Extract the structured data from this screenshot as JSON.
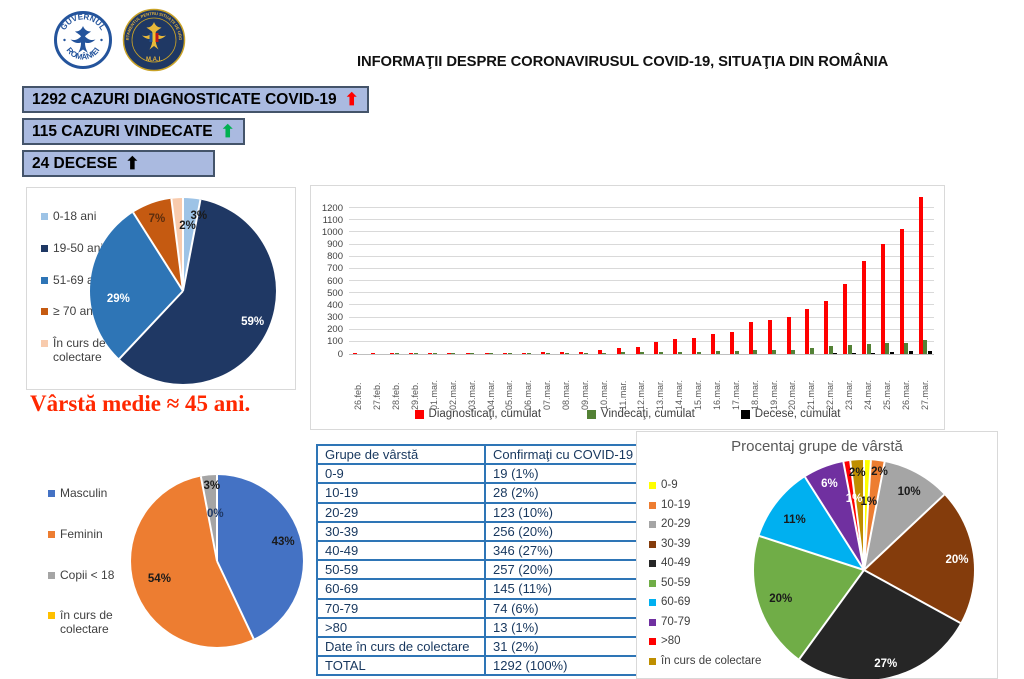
{
  "title": "INFORMAŢII DESPRE CORONAVIRUSUL COVID-19, SITUAŢIA DIN ROMÂNIA",
  "logos": {
    "gov": {
      "top": "GUVERNUL",
      "bottom": "ROMÂNIEI"
    },
    "dsu": {
      "ring": "DEPARTAMENTUL PENTRU SITUAŢII DE URGENŢĂ",
      "bottom": "M.A.I."
    }
  },
  "badges": [
    {
      "text": "1292 CAZURI DIAGNOSTICATE COVID-19",
      "arrow": "⬆",
      "arrow_color": "#FF0000"
    },
    {
      "text": "115 CAZURI VINDECATE",
      "arrow": "⬆",
      "arrow_color": "#00B050"
    },
    {
      "text": "24 DECESE",
      "arrow": "⬆",
      "arrow_color": "#000000"
    }
  ],
  "avg_age_note": "Vârstă medie ≈ 45 ani.",
  "chart_data": [
    {
      "id": "age_distribution_pie",
      "type": "pie",
      "title": "",
      "legend_position": "left",
      "slices": [
        {
          "label": "0-18 ani",
          "pct": 3,
          "color": "#9DC3E6",
          "label_color": "#1a1a1a",
          "label_angle": 12,
          "label_r": 0.82
        },
        {
          "label": "19-50 ani",
          "pct": 59,
          "color": "#1F3864",
          "label_color": "#FFFFFF",
          "label_angle": 114,
          "label_r": 0.82
        },
        {
          "label": "51-69 ani",
          "pct": 29,
          "color": "#2E75B6",
          "label_color": "#FFFFFF",
          "label_angle": 263,
          "label_r": 0.7
        },
        {
          "label": "≥ 70 ani",
          "pct": 7,
          "color": "#C55A11",
          "label_color": "#5B2D0E",
          "label_angle": 340,
          "label_r": 0.82
        },
        {
          "label": "În curs de colectare",
          "pct": 2,
          "color": "#F8CBAD",
          "label_color": "#1a1a1a",
          "label_angle": 4,
          "label_r": 0.7
        }
      ]
    },
    {
      "id": "cumulative_timeline_bars",
      "type": "bar",
      "title": "",
      "grid": true,
      "legend_position": "bottom",
      "ylim": [
        0,
        1300
      ],
      "yticks": [
        0,
        100,
        200,
        300,
        400,
        500,
        600,
        700,
        800,
        900,
        1000,
        1100,
        1200
      ],
      "categories": [
        "26.feb.",
        "27.feb.",
        "28.feb.",
        "29.feb.",
        "01.mar.",
        "02.mar.",
        "03.mar.",
        "04.mar.",
        "05.mar.",
        "06.mar.",
        "07.mar.",
        "08.mar.",
        "09.mar.",
        "10.mar.",
        "11.mar.",
        "12.mar.",
        "13.mar.",
        "14.mar.",
        "15.mar.",
        "16.mar.",
        "17.mar.",
        "18.mar.",
        "19.mar.",
        "20.mar.",
        "21.mar.",
        "22.mar.",
        "23.mar.",
        "24.mar.",
        "25.mar.",
        "26.mar.",
        "27.mar."
      ],
      "series": [
        {
          "name": "Diagnosticaţi, cumulat",
          "color": "#FF0000",
          "values": [
            1,
            1,
            3,
            3,
            3,
            3,
            4,
            6,
            6,
            9,
            13,
            15,
            17,
            29,
            47,
            59,
            95,
            123,
            131,
            168,
            184,
            261,
            277,
            308,
            367,
            433,
            576,
            762,
            906,
            1029,
            1292
          ]
        },
        {
          "name": "Vindecaţi, cumulat",
          "color": "#538135",
          "values": [
            0,
            0,
            1,
            1,
            1,
            3,
            3,
            4,
            5,
            6,
            6,
            7,
            9,
            9,
            16,
            16,
            16,
            19,
            19,
            25,
            25,
            31,
            31,
            31,
            52,
            64,
            73,
            79,
            94,
            94,
            115
          ]
        },
        {
          "name": "Decese, cumulat",
          "color": "#000000",
          "values": [
            0,
            0,
            0,
            0,
            0,
            0,
            0,
            0,
            0,
            0,
            0,
            0,
            0,
            0,
            0,
            0,
            0,
            0,
            0,
            0,
            0,
            0,
            0,
            0,
            0,
            3,
            7,
            11,
            17,
            23,
            24
          ]
        }
      ]
    },
    {
      "id": "gender_pie",
      "type": "pie",
      "title": "",
      "legend_position": "left",
      "slices": [
        {
          "label": "Masculin",
          "pct": 43,
          "color": "#4472C4",
          "label_color": "#1a1a1a",
          "label_angle": 74,
          "label_r": 0.8
        },
        {
          "label": "Feminin",
          "pct": 54,
          "color": "#ED7D31",
          "label_color": "#1a1a1a",
          "label_angle": 253,
          "label_r": 0.7
        },
        {
          "label": "Copii < 18",
          "pct": 3,
          "color": "#A5A5A5",
          "label_color": "#1a1a1a",
          "label_angle": 356,
          "label_r": 0.87
        },
        {
          "label": "în curs de colectare",
          "pct": 0,
          "color": "#FFC000",
          "label_color": "#1F3864",
          "label_angle": 358,
          "label_r": 0.55
        }
      ]
    },
    {
      "id": "age_group_pie",
      "type": "pie",
      "title": "Procentaj grupe de vârstă",
      "legend_position": "left",
      "slices": [
        {
          "label": "0-9",
          "pct": 1,
          "color": "#FFFF00",
          "label_color": "#1a1a1a",
          "label_angle": 4,
          "label_r": 0.62
        },
        {
          "label": "10-19",
          "pct": 2,
          "color": "#ED7D31",
          "label_color": "#1a1a1a",
          "label_angle": 9,
          "label_r": 0.9
        },
        {
          "label": "20-29",
          "pct": 10,
          "color": "#A5A5A5",
          "label_color": "#1a1a1a",
          "label_angle": 30,
          "label_r": 0.82
        },
        {
          "label": "30-39",
          "pct": 20,
          "color": "#843C0C",
          "label_color": "#FFFFFF",
          "label_angle": 84,
          "label_r": 0.85
        },
        {
          "label": "40-49",
          "pct": 27,
          "color": "#262626",
          "label_color": "#FFFFFF",
          "label_angle": 167,
          "label_r": 0.88
        },
        {
          "label": "50-59",
          "pct": 20,
          "color": "#70AD47",
          "label_color": "#1a1a1a",
          "label_angle": 251,
          "label_r": 0.8
        },
        {
          "label": "60-69",
          "pct": 11,
          "color": "#00B0F0",
          "label_color": "#1a1a1a",
          "label_angle": 306,
          "label_r": 0.78
        },
        {
          "label": "70-79",
          "pct": 6,
          "color": "#7030A0",
          "label_color": "#FFFFFF",
          "label_angle": 338,
          "label_r": 0.84
        },
        {
          "label": ">80",
          "pct": 1,
          "color": "#FF0000",
          "label_color": "#FFFFFF",
          "label_angle": 352,
          "label_r": 0.65
        },
        {
          "label": "în curs de colectare",
          "pct": 2,
          "color": "#BF8F00",
          "label_color": "#1a1a1a",
          "label_angle": 356,
          "label_r": 0.88
        }
      ]
    },
    {
      "id": "age_group_table",
      "type": "table",
      "columns": [
        "Grupe de vârstă",
        "Confirmaţi cu COVID-19"
      ],
      "rows": [
        [
          "0-9",
          "19 (1%)"
        ],
        [
          "10-19",
          "28 (2%)"
        ],
        [
          "20-29",
          "123 (10%)"
        ],
        [
          "30-39",
          "256 (20%)"
        ],
        [
          "40-49",
          "346 (27%)"
        ],
        [
          "50-59",
          "257 (20%)"
        ],
        [
          "60-69",
          "145 (11%)"
        ],
        [
          "70-79",
          "74 (6%)"
        ],
        [
          ">80",
          "13 (1%)"
        ],
        [
          "Date în curs de colectare",
          "31 (2%)"
        ],
        [
          "TOTAL",
          "1292 (100%)"
        ]
      ]
    }
  ]
}
